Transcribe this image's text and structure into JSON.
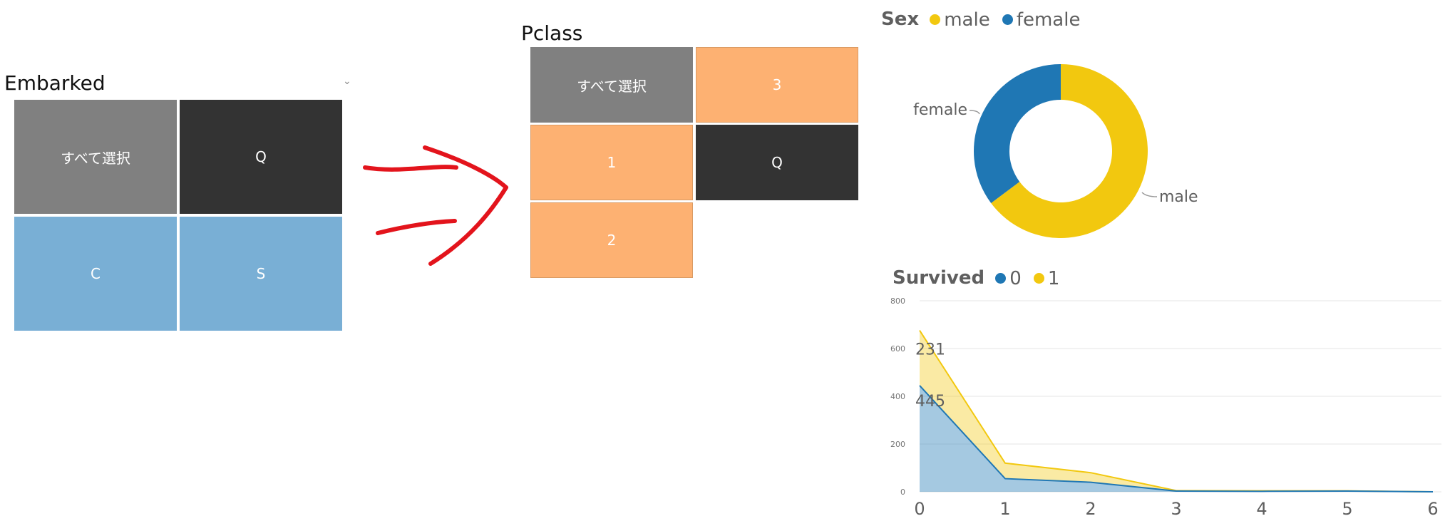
{
  "embarked": {
    "title": "Embarked",
    "tiles": [
      "すべて選択",
      "Q",
      "C",
      "S"
    ]
  },
  "pclass": {
    "title": "Pclass",
    "tiles": [
      "すべて選択",
      "3",
      "1",
      "Q",
      "2"
    ]
  },
  "sex_chart": {
    "legend_title": "Sex",
    "legend": [
      "male",
      "female"
    ],
    "colors": {
      "male": "#F2C80F",
      "female": "#1F77B4"
    },
    "chart_data": {
      "type": "pie",
      "title": "Sex",
      "labels": [
        "male",
        "female"
      ],
      "values": [
        64.8,
        35.2
      ]
    }
  },
  "survived_chart": {
    "legend_title": "Survived",
    "legend": [
      "0",
      "1"
    ],
    "colors": {
      "0": "#1F77B4",
      "1": "#F2C80F"
    },
    "data_labels": [
      "231",
      "445"
    ],
    "chart_data": {
      "type": "area",
      "x": [
        0,
        1,
        2,
        3,
        4,
        5,
        6
      ],
      "series": [
        {
          "name": "0",
          "values": [
            445,
            55,
            40,
            3,
            2,
            3,
            0
          ]
        },
        {
          "name": "1",
          "values": [
            231,
            65,
            40,
            2,
            2,
            1,
            0
          ]
        }
      ],
      "stacked": true,
      "ylim": [
        0,
        800
      ],
      "yticks": [
        "0",
        "200",
        "400",
        "600",
        "800"
      ],
      "xticks": [
        "0",
        "1",
        "2",
        "3",
        "4",
        "5",
        "6"
      ],
      "grid": true
    }
  }
}
